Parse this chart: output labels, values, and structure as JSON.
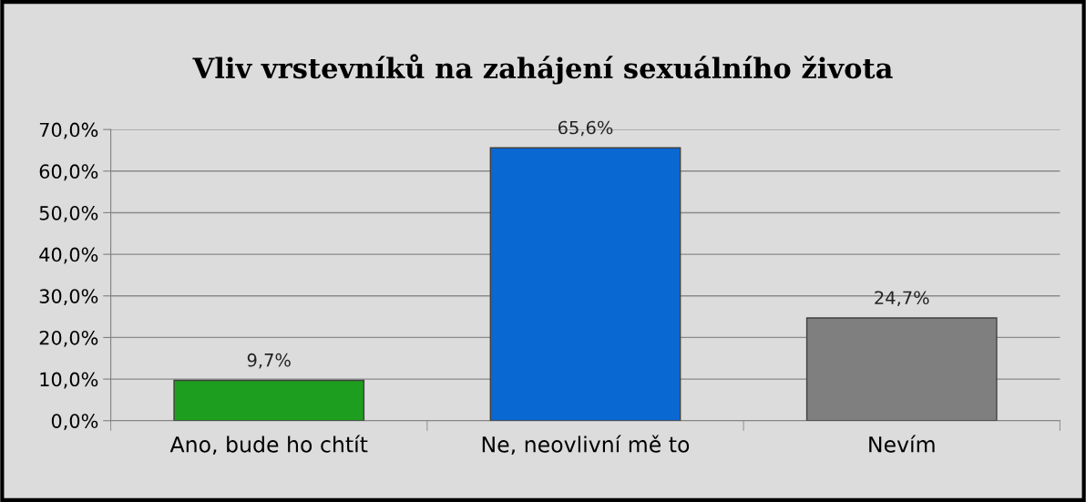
{
  "chart_data": {
    "type": "bar",
    "title": "Vliv vrstevníků na zahájení sexuálního života",
    "categories": [
      "Ano, bude ho chtít",
      "Ne, neovlivní mě to",
      "Nevím"
    ],
    "values": [
      9.7,
      65.6,
      24.7
    ],
    "colors": [
      "#1e9e1e",
      "#0a68d2",
      "#7f7f7f"
    ],
    "value_labels": [
      "9,7%",
      "65,6%",
      "24,7%"
    ],
    "ylim": [
      0,
      70
    ],
    "yticks": [
      {
        "value": 0,
        "label": "0,0%"
      },
      {
        "value": 10,
        "label": "10,0%"
      },
      {
        "value": 20,
        "label": "20,0%"
      },
      {
        "value": 30,
        "label": "30,0%"
      },
      {
        "value": 40,
        "label": "40,0%"
      },
      {
        "value": 50,
        "label": "50,0%"
      },
      {
        "value": 60,
        "label": "60,0%"
      },
      {
        "value": 70,
        "label": "70,0%"
      }
    ],
    "grid": "y",
    "legend": false
  }
}
